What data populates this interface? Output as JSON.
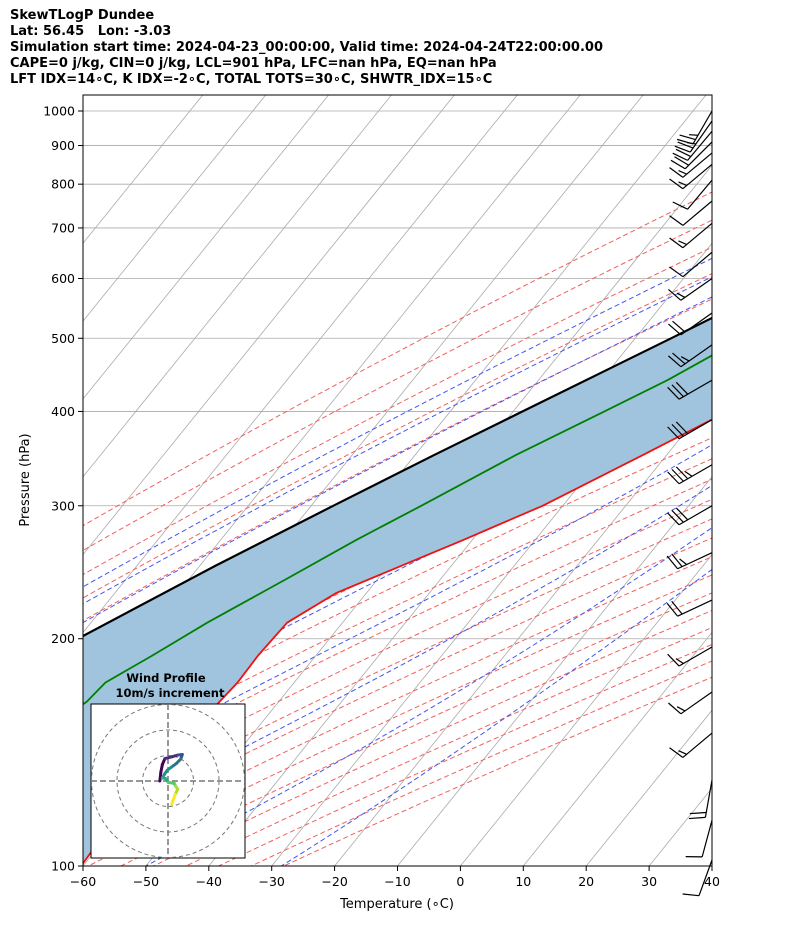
{
  "header": {
    "line1": "SkewTLogP Dundee",
    "line2": "Lat: 56.45   Lon: -3.03",
    "line3": "Simulation start time: 2024-04-23_00:00:00, Valid time: 2024-04-24T22:00:00.00",
    "line4": "CAPE=0 j/kg, CIN=0 j/kg, LCL=901 hPa, LFC=nan hPa, EQ=nan hPa",
    "line5": "LFT IDX=14∘C, K IDX=-2∘C, TOTAL TOTS=30∘C, SHWTR_IDX=15∘C"
  },
  "chart_data": {
    "type": "skew-t",
    "xlabel": "Temperature (∘C)",
    "ylabel": "Pressure (hPa)",
    "xlim": [
      -60,
      40
    ],
    "ylim": [
      1050,
      100
    ],
    "x_ticks": [
      -60,
      -50,
      -40,
      -30,
      -20,
      -10,
      0,
      10,
      20,
      30,
      40
    ],
    "x_tick_labels": [
      "−60",
      "−50",
      "−40",
      "−30",
      "−20",
      "−10",
      "0",
      "10",
      "20",
      "30",
      "40"
    ],
    "y_ticks": [
      1000,
      900,
      800,
      700,
      600,
      500,
      400,
      300,
      200,
      100
    ],
    "y_tick_labels": [
      "1000",
      "900",
      "800",
      "700",
      "600",
      "500",
      "400",
      "300",
      "200",
      "100"
    ],
    "grid": true,
    "colors": {
      "temperature": "#ee1111",
      "dewpoint": "#008000",
      "parcel": "#000000",
      "shade": "#a0c4de",
      "dry_adiabats": "#f06060",
      "moist_adiabats": "#4455ee",
      "mixing_ratio": "#7a3fbf",
      "isotherms": "#aaaaaa"
    },
    "series": [
      {
        "key": "temperature",
        "values": [
          [
            1000,
            6.8
          ],
          [
            985,
            7.3
          ],
          [
            960,
            5.2
          ],
          [
            920,
            3.5
          ],
          [
            880,
            2.2
          ],
          [
            850,
            1.5
          ],
          [
            800,
            0.5
          ],
          [
            750,
            0.3
          ],
          [
            700,
            0.2
          ],
          [
            650,
            -0.5
          ],
          [
            600,
            -1.8
          ],
          [
            550,
            -3.5
          ],
          [
            500,
            -6.1
          ],
          [
            450,
            -10.3
          ],
          [
            400,
            -15.9
          ],
          [
            350,
            -23.8
          ],
          [
            300,
            -33.2
          ],
          [
            270,
            -41.5
          ],
          [
            250,
            -47.9
          ],
          [
            230,
            -54.8
          ],
          [
            210,
            -58.8
          ],
          [
            190,
            -59.2
          ],
          [
            175,
            -59.0
          ],
          [
            160,
            -59.6
          ],
          [
            150,
            -60.7
          ],
          [
            140,
            -61.9
          ],
          [
            130,
            -62.7
          ],
          [
            120,
            -62.0
          ],
          [
            110,
            -60.7
          ],
          [
            100,
            -60.3
          ]
        ]
      },
      {
        "key": "dewpoint",
        "values": [
          [
            1000,
            -0.1
          ],
          [
            980,
            -1.2
          ],
          [
            955,
            -4.0
          ],
          [
            930,
            -9.5
          ],
          [
            890,
            -15.5
          ],
          [
            850,
            -19.5
          ],
          [
            800,
            -21.0
          ],
          [
            760,
            -17.0
          ],
          [
            720,
            -13.5
          ],
          [
            680,
            -11.3
          ],
          [
            640,
            -10.9
          ],
          [
            600,
            -11.8
          ],
          [
            560,
            -15.0
          ],
          [
            520,
            -20.0
          ],
          [
            480,
            -25.0
          ],
          [
            440,
            -29.5
          ],
          [
            400,
            -35.5
          ],
          [
            350,
            -44.0
          ],
          [
            300,
            -52.5
          ],
          [
            270,
            -58.5
          ],
          [
            240,
            -64.5
          ],
          [
            210,
            -71.5
          ],
          [
            190,
            -76.0
          ],
          [
            175,
            -80.0
          ],
          [
            165,
            -80.5
          ],
          [
            150,
            -84.0
          ],
          [
            130,
            -90.0
          ],
          [
            115,
            -96.0
          ],
          [
            100,
            -103.0
          ]
        ]
      },
      {
        "key": "parcel",
        "values": [
          [
            1000,
            6.8
          ],
          [
            950,
            2.4
          ],
          [
            901,
            -1.1
          ],
          [
            850,
            -3.9
          ],
          [
            800,
            -7.0
          ],
          [
            750,
            -10.3
          ],
          [
            700,
            -14.1
          ],
          [
            650,
            -18.3
          ],
          [
            600,
            -23.0
          ],
          [
            550,
            -28.3
          ],
          [
            500,
            -34.3
          ],
          [
            450,
            -41.0
          ],
          [
            400,
            -48.5
          ],
          [
            350,
            -57.0
          ],
          [
            300,
            -66.5
          ],
          [
            250,
            -77.5
          ],
          [
            200,
            -90.0
          ],
          [
            150,
            -104.5
          ],
          [
            125,
            -112.5
          ],
          [
            100,
            -122.0
          ]
        ]
      }
    ],
    "wind_barbs": [
      {
        "p": 1000,
        "spd": 25,
        "dir": 210
      },
      {
        "p": 970,
        "spd": 25,
        "dir": 215
      },
      {
        "p": 940,
        "spd": 20,
        "dir": 220
      },
      {
        "p": 910,
        "spd": 20,
        "dir": 225
      },
      {
        "p": 880,
        "spd": 15,
        "dir": 230
      },
      {
        "p": 850,
        "spd": 15,
        "dir": 230
      },
      {
        "p": 810,
        "spd": 10,
        "dir": 220
      },
      {
        "p": 760,
        "spd": 10,
        "dir": 230
      },
      {
        "p": 710,
        "spd": 15,
        "dir": 230
      },
      {
        "p": 650,
        "spd": 10,
        "dir": 230
      },
      {
        "p": 600,
        "spd": 15,
        "dir": 235
      },
      {
        "p": 540,
        "spd": 20,
        "dir": 235
      },
      {
        "p": 490,
        "spd": 25,
        "dir": 235
      },
      {
        "p": 440,
        "spd": 30,
        "dir": 240
      },
      {
        "p": 390,
        "spd": 30,
        "dir": 240
      },
      {
        "p": 340,
        "spd": 35,
        "dir": 240
      },
      {
        "p": 300,
        "spd": 30,
        "dir": 240
      },
      {
        "p": 260,
        "spd": 25,
        "dir": 245
      },
      {
        "p": 225,
        "spd": 20,
        "dir": 245
      },
      {
        "p": 195,
        "spd": 15,
        "dir": 240
      },
      {
        "p": 170,
        "spd": 15,
        "dir": 235
      },
      {
        "p": 150,
        "spd": 15,
        "dir": 230
      },
      {
        "p": 130,
        "spd": 20,
        "dir": 190
      },
      {
        "p": 115,
        "spd": 10,
        "dir": 195
      },
      {
        "p": 100,
        "spd": 10,
        "dir": 200
      }
    ],
    "hodograph": {
      "title_line1": "Wind Profile",
      "title_line2": "10m/s increment",
      "ring_increment": 10,
      "rings": [
        10,
        20,
        30
      ],
      "points": [
        [
          -3.2,
          0.0
        ],
        [
          -2.8,
          -3.5
        ],
        [
          -2.2,
          -6.5
        ],
        [
          -1.2,
          -8.8
        ],
        [
          1.5,
          -9.5
        ],
        [
          4.0,
          -10.2
        ],
        [
          5.6,
          -10.4
        ],
        [
          5.0,
          -8.6
        ],
        [
          3.3,
          -6.9
        ],
        [
          1.3,
          -5.4
        ],
        [
          -0.3,
          -4.2
        ],
        [
          -1.3,
          -2.8
        ],
        [
          -2.2,
          -1.2
        ],
        [
          -1.0,
          -1.0
        ],
        [
          0.2,
          0.6
        ],
        [
          2.4,
          0.9
        ],
        [
          3.0,
          2.0
        ],
        [
          3.8,
          3.2
        ],
        [
          2.8,
          5.3
        ],
        [
          2.2,
          7.0
        ],
        [
          1.5,
          8.9
        ]
      ]
    }
  }
}
